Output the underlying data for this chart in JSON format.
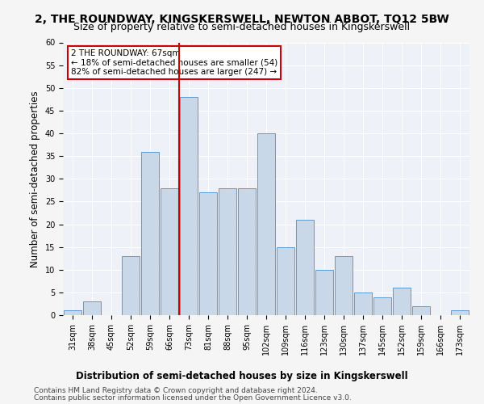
{
  "title": "2, THE ROUNDWAY, KINGSKERSWELL, NEWTON ABBOT, TQ12 5BW",
  "subtitle": "Size of property relative to semi-detached houses in Kingskerswell",
  "xlabel": "Distribution of semi-detached houses by size in Kingskerswell",
  "ylabel": "Number of semi-detached properties",
  "categories": [
    "31sqm",
    "38sqm",
    "45sqm",
    "52sqm",
    "59sqm",
    "66sqm",
    "73sqm",
    "81sqm",
    "88sqm",
    "95sqm",
    "102sqm",
    "109sqm",
    "116sqm",
    "123sqm",
    "130sqm",
    "137sqm",
    "145sqm",
    "152sqm",
    "159sqm",
    "166sqm",
    "173sqm"
  ],
  "values": [
    1,
    3,
    0,
    13,
    36,
    28,
    48,
    27,
    28,
    28,
    40,
    15,
    21,
    10,
    13,
    5,
    4,
    6,
    2,
    0,
    1
  ],
  "bar_color": "#c8d8e8",
  "bar_edge_color": "#5b9bd5",
  "annotation_line1": "2 THE ROUNDWAY: 67sqm",
  "annotation_line2": "← 18% of semi-detached houses are smaller (54)",
  "annotation_line3": "82% of semi-detached houses are larger (247) →",
  "annotation_box_color": "#ffffff",
  "annotation_box_edge_color": "#cc0000",
  "annotation_text_color": "#000000",
  "highlight_line_color": "#cc0000",
  "ylim": [
    0,
    60
  ],
  "yticks": [
    0,
    5,
    10,
    15,
    20,
    25,
    30,
    35,
    40,
    45,
    50,
    55,
    60
  ],
  "footer1": "Contains HM Land Registry data © Crown copyright and database right 2024.",
  "footer2": "Contains public sector information licensed under the Open Government Licence v3.0.",
  "bg_color": "#eef2f8",
  "grid_color": "#ffffff",
  "title_fontsize": 10,
  "subtitle_fontsize": 9,
  "axis_label_fontsize": 8.5,
  "tick_fontsize": 7,
  "footer_fontsize": 6.5,
  "annotation_fontsize": 7.5
}
